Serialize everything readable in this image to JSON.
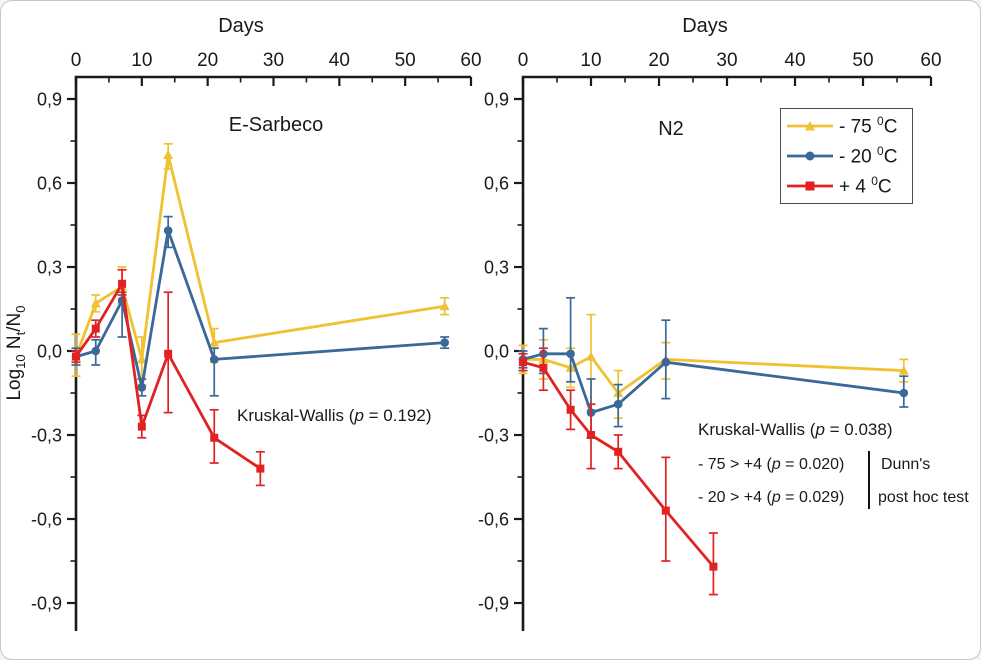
{
  "colors": {
    "minus75": "#EFC133",
    "minus20": "#3A6898",
    "plus4": "#E02222",
    "axis": "#1a1a1a",
    "text": "#1a1a1a",
    "legend_border": "#4d4d4d",
    "frame_border": "#c6c6c6",
    "background": "#ffffff"
  },
  "x_axis": {
    "title": "Days",
    "tick_values": [
      0,
      10,
      20,
      30,
      40,
      50,
      60
    ],
    "minor_step": 5,
    "max": 60
  },
  "y_axis": {
    "tick_labels": [
      "0,9",
      "0,6",
      "0,3",
      "0,0",
      "-0,3",
      "-0,6",
      "-0,9"
    ],
    "tick_values": [
      0.9,
      0.6,
      0.3,
      0,
      -0.3,
      -0.6,
      -0.9
    ],
    "minor_step": 0.15,
    "label_parts": {
      "log": "Log",
      "log_sub": "10",
      "nt": " N",
      "nt_sub": "t",
      "slash": "/N",
      "n0_sub": "0"
    }
  },
  "legend": {
    "entries": [
      {
        "color_key": "minus75",
        "marker": "triangle",
        "prefix": "- 75 ",
        "sup": "0",
        "unit": "C"
      },
      {
        "color_key": "minus20",
        "marker": "circle",
        "prefix": "- 20 ",
        "sup": "0",
        "unit": "C"
      },
      {
        "color_key": "plus4",
        "marker": "square",
        "prefix": "+ 4 ",
        "sup": "0",
        "unit": "C"
      }
    ]
  },
  "chart_data": [
    {
      "type": "line",
      "title": "E-Sarbeco",
      "xlabel": "Days",
      "ylabel": "Log10 Nt/N0",
      "ylim": [
        -1.0,
        0.95
      ],
      "xlim": [
        0,
        60
      ],
      "annotation": {
        "prefix": "Kruskal-Wallis (",
        "italic": "p",
        "suffix": " = 0.192)"
      },
      "series": [
        {
          "name": "-75C",
          "color_key": "minus75",
          "marker": "triangle",
          "points": [
            [
              0,
              -0.02,
              -0.09,
              0.06
            ],
            [
              3,
              0.17,
              0.14,
              0.2
            ],
            [
              7,
              0.23,
              0.17,
              0.3
            ],
            [
              10,
              -0.03,
              -0.12,
              0.05
            ],
            [
              14,
              0.7,
              0.65,
              0.74
            ],
            [
              21,
              0.03,
              -0.04,
              0.08
            ],
            [
              56,
              0.16,
              0.13,
              0.19
            ]
          ]
        },
        {
          "name": "-20C",
          "color_key": "minus20",
          "marker": "circle",
          "points": [
            [
              0,
              -0.02,
              -0.05,
              0.01
            ],
            [
              3,
              0.0,
              -0.05,
              0.04
            ],
            [
              7,
              0.18,
              0.05,
              0.21
            ],
            [
              10,
              -0.13,
              -0.16,
              -0.1
            ],
            [
              14,
              0.43,
              0.37,
              0.48
            ],
            [
              21,
              -0.03,
              -0.16,
              0.01
            ],
            [
              56,
              0.03,
              0.01,
              0.05
            ]
          ]
        },
        {
          "name": "+4C",
          "color_key": "plus4",
          "marker": "square",
          "points": [
            [
              0,
              -0.02,
              -0.04,
              0.0
            ],
            [
              3,
              0.08,
              0.05,
              0.11
            ],
            [
              7,
              0.24,
              0.2,
              0.29
            ],
            [
              10,
              -0.27,
              -0.31,
              -0.23
            ],
            [
              14,
              -0.01,
              -0.22,
              0.21
            ],
            [
              21,
              -0.31,
              -0.4,
              -0.21
            ],
            [
              28,
              -0.42,
              -0.48,
              -0.36
            ]
          ]
        }
      ]
    },
    {
      "type": "line",
      "title": "N2",
      "xlabel": "Days",
      "ylabel": "Log10 Nt/N0",
      "ylim": [
        -1.0,
        0.95
      ],
      "xlim": [
        0,
        60
      ],
      "annotation": {
        "prefix": "Kruskal-Wallis (",
        "italic": "p",
        "suffix": " = 0.038)"
      },
      "posthoc": {
        "lines": [
          {
            "prefix": "- 75 > +4 (",
            "italic": "p",
            "suffix": " = 0.020)"
          },
          {
            "prefix": "- 20 > +4 (",
            "italic": "p",
            "suffix": " = 0.029)"
          }
        ],
        "name_line1": "Dunn's",
        "name_line2": "post hoc test"
      },
      "series": [
        {
          "name": "-75C",
          "color_key": "minus75",
          "marker": "triangle",
          "points": [
            [
              0,
              -0.03,
              -0.08,
              0.02
            ],
            [
              3,
              -0.03,
              -0.1,
              0.04
            ],
            [
              7,
              -0.06,
              -0.13,
              0.01
            ],
            [
              10,
              -0.02,
              -0.21,
              0.13
            ],
            [
              14,
              -0.15,
              -0.24,
              -0.07
            ],
            [
              21,
              -0.03,
              -0.1,
              0.03
            ],
            [
              56,
              -0.07,
              -0.11,
              -0.03
            ]
          ]
        },
        {
          "name": "-20C",
          "color_key": "minus20",
          "marker": "circle",
          "points": [
            [
              0,
              -0.03,
              -0.06,
              0.0
            ],
            [
              3,
              -0.01,
              -0.08,
              0.08
            ],
            [
              7,
              -0.01,
              -0.11,
              0.19
            ],
            [
              10,
              -0.22,
              -0.31,
              -0.1
            ],
            [
              14,
              -0.19,
              -0.27,
              -0.12
            ],
            [
              21,
              -0.04,
              -0.17,
              0.11
            ],
            [
              56,
              -0.15,
              -0.2,
              -0.09
            ]
          ]
        },
        {
          "name": "+4C",
          "color_key": "plus4",
          "marker": "square",
          "points": [
            [
              0,
              -0.04,
              -0.07,
              -0.01
            ],
            [
              3,
              -0.06,
              -0.14,
              0.01
            ],
            [
              7,
              -0.21,
              -0.28,
              -0.14
            ],
            [
              10,
              -0.3,
              -0.42,
              -0.19
            ],
            [
              14,
              -0.36,
              -0.42,
              -0.3
            ],
            [
              21,
              -0.57,
              -0.75,
              -0.38
            ],
            [
              28,
              -0.77,
              -0.87,
              -0.65
            ]
          ]
        }
      ]
    }
  ]
}
